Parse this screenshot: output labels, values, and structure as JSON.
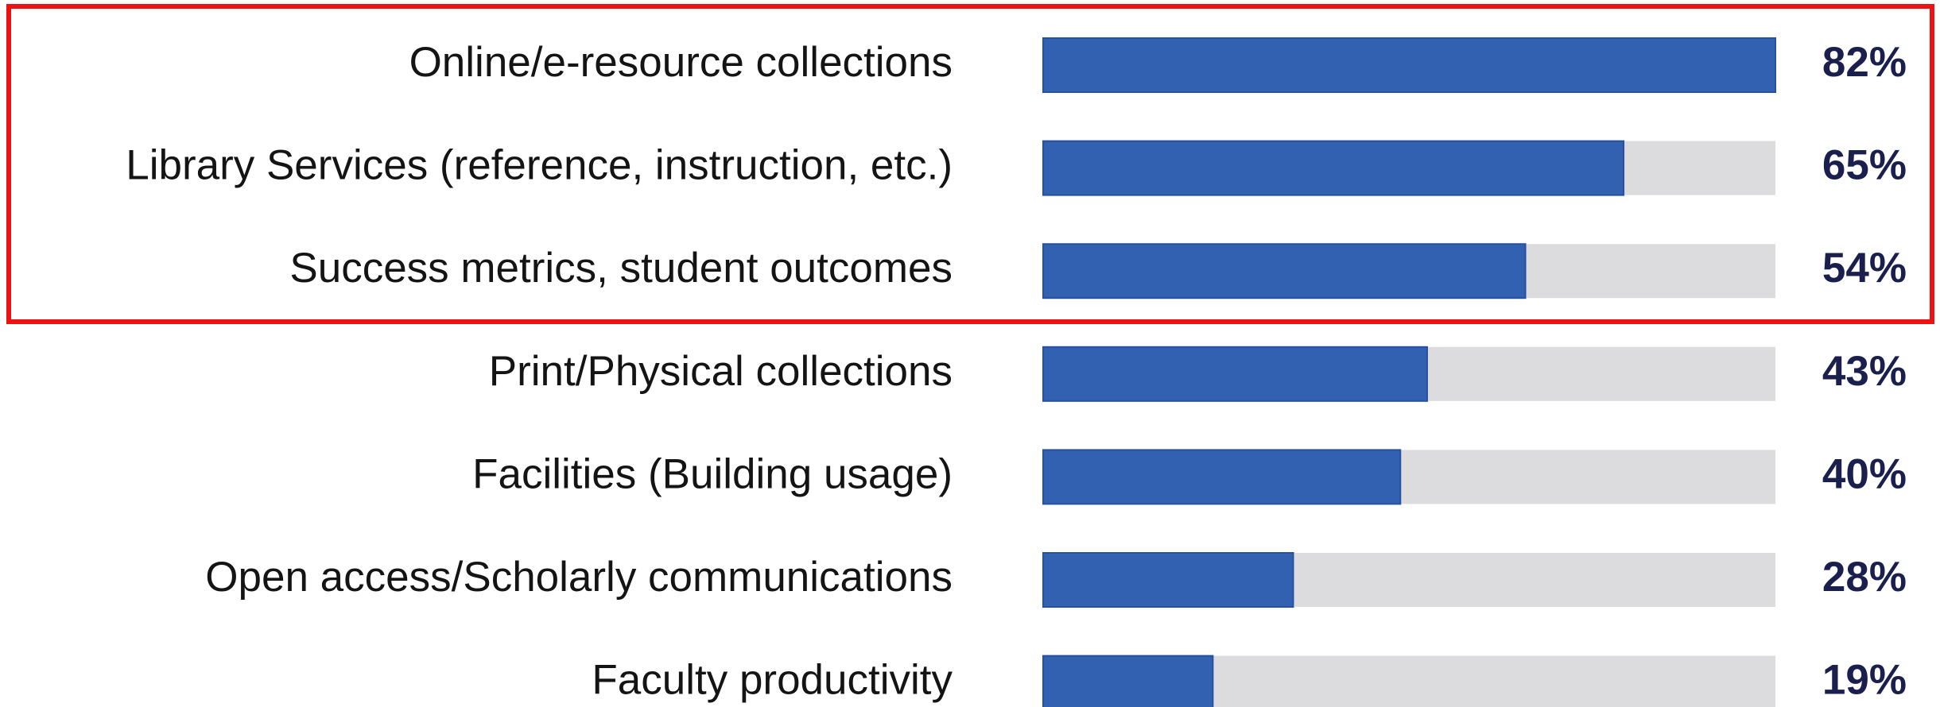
{
  "chart_data": {
    "type": "bar",
    "orientation": "horizontal",
    "categories": [
      "Online/e-resource collections",
      "Library Services (reference, instruction, etc.)",
      "Success metrics, student outcomes",
      "Print/Physical collections",
      "Facilities (Building usage)",
      "Open access/Scholarly communications",
      "Faculty productivity"
    ],
    "values": [
      82,
      65,
      54,
      43,
      40,
      28,
      19
    ],
    "value_labels": [
      "82%",
      "65%",
      "54%",
      "43%",
      "40%",
      "28%",
      "19%"
    ],
    "color": "#3161b0",
    "track_color": "#dcdcde",
    "xlim": [
      0,
      82
    ]
  }
}
